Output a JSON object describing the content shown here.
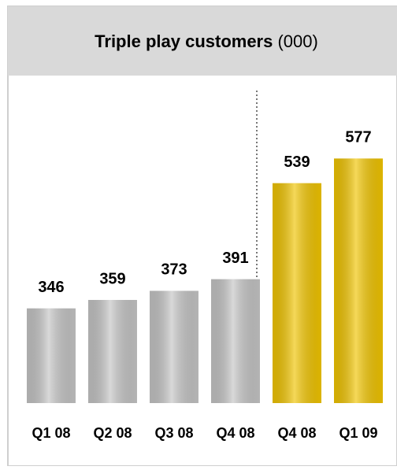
{
  "chart_data": {
    "type": "bar",
    "title": "Triple play customers",
    "unit": "(000)",
    "categories": [
      "Q1 08",
      "Q2 08",
      "Q3 08",
      "Q4 08",
      "Q4 08",
      "Q1 09"
    ],
    "values": [
      346,
      359,
      373,
      391,
      539,
      577
    ],
    "colors": [
      "#c4c4c4",
      "#c4c4c4",
      "#c4c4c4",
      "#c4c4c4",
      "#f0c400",
      "#f0c400"
    ],
    "ylim": [
      200,
      700
    ]
  }
}
